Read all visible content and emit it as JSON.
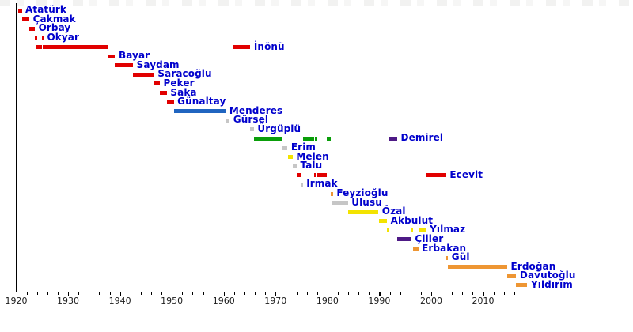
{
  "chart_data": {
    "type": "timeline",
    "description": "Gantt-style timeline of Turkish prime ministers' terms in office, 1920-2018",
    "axis": {
      "x_min": 1920,
      "x_max": 2018.8,
      "minor_tick_step_years": 2,
      "major_ticks": [
        {
          "year": 1920,
          "label": "1920"
        },
        {
          "year": 1930,
          "label": "1930"
        },
        {
          "year": 1940,
          "label": "1940"
        },
        {
          "year": 1950,
          "label": "1950"
        },
        {
          "year": 1960,
          "label": "1960"
        },
        {
          "year": 1970,
          "label": "1970"
        },
        {
          "year": 1980,
          "label": "1980"
        },
        {
          "year": 1990,
          "label": "1990"
        },
        {
          "year": 2000,
          "label": "2000"
        },
        {
          "year": 2010,
          "label": "2010"
        }
      ]
    },
    "palette": {
      "red": "#e10000",
      "blue": "#2065c0",
      "gray": "#c6c6c6",
      "green": "#0a9e0a",
      "yellow": "#f3e300",
      "purple": "#4e1a86",
      "orange": "#ee9633"
    },
    "rows": [
      {
        "name": "Atatürk",
        "color": "red",
        "terms": [
          {
            "start": 1920.33,
            "end": 1921.07
          }
        ]
      },
      {
        "name": "Çakmak",
        "color": "red",
        "terms": [
          {
            "start": 1921.07,
            "end": 1922.54
          }
        ]
      },
      {
        "name": "Orbay",
        "color": "red",
        "terms": [
          {
            "start": 1922.54,
            "end": 1923.6
          }
        ]
      },
      {
        "name": "Okyar",
        "color": "red",
        "terms": [
          {
            "start": 1923.62,
            "end": 1923.83
          },
          {
            "start": 1924.89,
            "end": 1925.17
          }
        ]
      },
      {
        "name": "İnönü",
        "color": "red",
        "terms": [
          {
            "start": 1923.83,
            "end": 1924.89
          },
          {
            "start": 1925.17,
            "end": 1937.82
          },
          {
            "start": 1961.88,
            "end": 1965.13
          }
        ]
      },
      {
        "name": "Bayar",
        "color": "red",
        "terms": [
          {
            "start": 1937.82,
            "end": 1939.06
          }
        ]
      },
      {
        "name": "Saydam",
        "color": "red",
        "terms": [
          {
            "start": 1939.06,
            "end": 1942.52
          }
        ]
      },
      {
        "name": "Saracoğlu",
        "color": "red",
        "terms": [
          {
            "start": 1942.52,
            "end": 1946.6
          }
        ]
      },
      {
        "name": "Peker",
        "color": "red",
        "terms": [
          {
            "start": 1946.6,
            "end": 1947.69
          }
        ]
      },
      {
        "name": "Saka",
        "color": "red",
        "terms": [
          {
            "start": 1947.69,
            "end": 1949.04
          }
        ]
      },
      {
        "name": "Günaltay",
        "color": "red",
        "terms": [
          {
            "start": 1949.04,
            "end": 1950.38
          }
        ]
      },
      {
        "name": "Menderes",
        "color": "blue",
        "terms": [
          {
            "start": 1950.38,
            "end": 1960.4
          }
        ]
      },
      {
        "name": "Gürsel",
        "color": "gray",
        "terms": [
          {
            "start": 1960.42,
            "end": 1961.15
          }
        ]
      },
      {
        "name": "Ürgüplü",
        "color": "gray",
        "terms": [
          {
            "start": 1965.14,
            "end": 1965.82
          }
        ]
      },
      {
        "name": "Demirel",
        "color": "green",
        "terms": [
          {
            "start": 1965.82,
            "end": 1971.23
          },
          {
            "start": 1975.25,
            "end": 1977.47
          },
          {
            "start": 1977.55,
            "end": 1978.02
          },
          {
            "start": 1979.87,
            "end": 1980.7
          },
          {
            "start": 1991.88,
            "end": 1993.45,
            "color": "purple"
          }
        ]
      },
      {
        "name": "Erim",
        "color": "gray",
        "terms": [
          {
            "start": 1971.23,
            "end": 1972.3
          }
        ]
      },
      {
        "name": "Melen",
        "color": "yellow",
        "terms": [
          {
            "start": 1972.39,
            "end": 1973.29
          }
        ]
      },
      {
        "name": "Talu",
        "color": "gray",
        "terms": [
          {
            "start": 1973.29,
            "end": 1974.07
          }
        ]
      },
      {
        "name": "Ecevit",
        "color": "red",
        "terms": [
          {
            "start": 1974.07,
            "end": 1974.88
          },
          {
            "start": 1977.47,
            "end": 1977.55
          },
          {
            "start": 1978.02,
            "end": 1979.87
          },
          {
            "start": 1999.03,
            "end": 2002.88
          }
        ]
      },
      {
        "name": "Irmak",
        "color": "gray",
        "terms": [
          {
            "start": 1974.88,
            "end": 1975.25
          }
        ]
      },
      {
        "name": "Feyzioğlu",
        "color": "orange",
        "terms": [
          {
            "start": 1980.7,
            "end": 1980.74
          }
        ]
      },
      {
        "name": "Ulusu",
        "color": "gray",
        "terms": [
          {
            "start": 1980.71,
            "end": 1983.95
          }
        ]
      },
      {
        "name": "Özal",
        "color": "yellow",
        "terms": [
          {
            "start": 1983.95,
            "end": 1989.83
          }
        ]
      },
      {
        "name": "Akbulut",
        "color": "yellow",
        "terms": [
          {
            "start": 1989.86,
            "end": 1991.48
          }
        ]
      },
      {
        "name": "Yılmaz",
        "color": "yellow",
        "terms": [
          {
            "start": 1991.48,
            "end": 1991.88
          },
          {
            "start": 1996.18,
            "end": 1996.49
          },
          {
            "start": 1997.5,
            "end": 1999.03
          }
        ]
      },
      {
        "name": "Çiller",
        "color": "purple",
        "terms": [
          {
            "start": 1993.48,
            "end": 1996.18
          }
        ]
      },
      {
        "name": "Erbakan",
        "color": "orange",
        "terms": [
          {
            "start": 1996.49,
            "end": 1997.5
          }
        ]
      },
      {
        "name": "Gül",
        "color": "orange",
        "terms": [
          {
            "start": 2002.88,
            "end": 2003.2
          }
        ]
      },
      {
        "name": "Erdoğan",
        "color": "orange",
        "terms": [
          {
            "start": 2003.2,
            "end": 2014.65
          }
        ]
      },
      {
        "name": "Davutoğlu",
        "color": "orange",
        "terms": [
          {
            "start": 2014.65,
            "end": 2016.39
          }
        ]
      },
      {
        "name": "Yıldırım",
        "color": "orange",
        "terms": [
          {
            "start": 2016.39,
            "end": 2018.53
          }
        ]
      }
    ]
  },
  "colors": {
    "background": "#ffffff",
    "name_label_text": "#0000cc",
    "axis_line": "#000000",
    "tick_label_text": "#1a1a1a"
  }
}
